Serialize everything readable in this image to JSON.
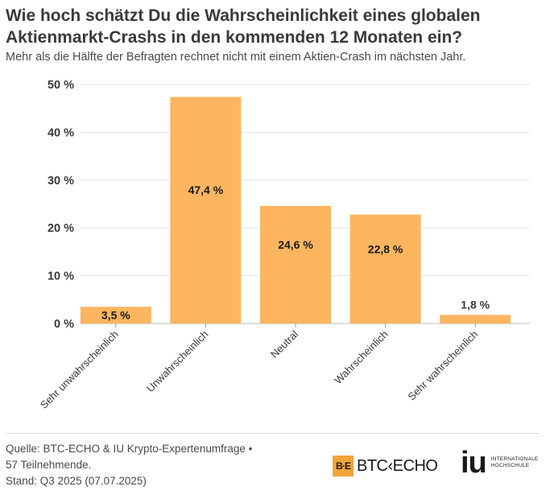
{
  "chart_data": {
    "type": "bar",
    "title": "Wie hoch schätzt Du die Wahrscheinlichkeit eines globalen Aktienmarkt-Crashs in den kommenden 12 Monaten ein?",
    "subtitle": "Mehr als die Hälfte der Befragten rechnet nicht mit einem Aktien-Crash im nächsten Jahr.",
    "categories": [
      "Sehr unwahrscheinlich",
      "Unwahrscheinlich",
      "Neutral",
      "Wahrscheinlich",
      "Sehr wahrscheinlich"
    ],
    "values": [
      3.5,
      47.4,
      24.6,
      22.8,
      1.8
    ],
    "value_labels": [
      "3,5 %",
      "47,4 %",
      "24,6 %",
      "22,8 %",
      "1,8 %"
    ],
    "yticks": [
      0,
      10,
      20,
      30,
      40,
      50
    ],
    "ytick_labels": [
      "0 %",
      "10 %",
      "20 %",
      "30 %",
      "40 %",
      "50 %"
    ],
    "ylim": [
      0,
      50
    ],
    "xlabel": "",
    "ylabel": "",
    "grid": true,
    "bar_color": "#fdb55f"
  },
  "footer": {
    "source_lines": [
      "Quelle: BTC-ECHO & IU Krypto-Expertenumfrage •",
      "57 Teilnehmende.",
      "Stand: Q3 2025 (07.07.2025)"
    ],
    "btc_logo_mark": "B·E",
    "btc_logo_text": "BTC‹ECHO",
    "iu_logo_mark": "iu",
    "iu_logo_text_1": "INTERNATIONALE",
    "iu_logo_text_2": "HOCHSCHULE"
  }
}
